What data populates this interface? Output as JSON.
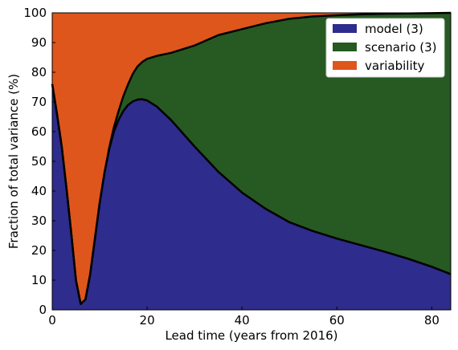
{
  "chart_data": {
    "type": "area",
    "stacked": true,
    "xlabel": "Lead time (years from 2016)",
    "ylabel": "Fraction of total variance (%)",
    "xlim": [
      0,
      84
    ],
    "ylim": [
      0,
      100
    ],
    "xticks": [
      0,
      20,
      40,
      60,
      80
    ],
    "yticks": [
      0,
      10,
      20,
      30,
      40,
      50,
      60,
      70,
      80,
      90,
      100
    ],
    "grid": false,
    "legend_position": "top-right",
    "x": [
      0,
      1,
      2,
      3,
      4,
      5,
      6,
      7,
      8,
      9,
      10,
      11,
      12,
      13,
      14,
      15,
      16,
      17,
      18,
      19,
      20,
      22,
      25,
      30,
      35,
      40,
      45,
      50,
      55,
      60,
      65,
      70,
      75,
      80,
      84
    ],
    "series": [
      {
        "name": "model (3)",
        "color": "#2e2c8c",
        "values": [
          76,
          66,
          55,
          41,
          26,
          10,
          2,
          3.5,
          12,
          24,
          36,
          46,
          54,
          60,
          64,
          67,
          69,
          70.2,
          70.8,
          70.9,
          70.5,
          68.5,
          64,
          55,
          46.5,
          39.5,
          34,
          29.5,
          26.5,
          24,
          21.8,
          19.6,
          17.2,
          14.5,
          12
        ]
      },
      {
        "name": "scenario (3)",
        "color": "#265a22",
        "values": [
          0,
          0,
          0,
          0,
          0,
          0,
          0,
          0,
          0,
          0,
          0,
          0,
          0.5,
          1.5,
          3,
          5,
          7,
          9.3,
          11.2,
          12.6,
          14,
          17,
          22.5,
          34,
          46,
          55,
          62.5,
          68.5,
          72.3,
          75.2,
          77.7,
          80.1,
          82.6,
          85.4,
          88
        ]
      },
      {
        "name": "variability",
        "color": "#de561c",
        "values": [
          24,
          34,
          45,
          59,
          74,
          90,
          98,
          96.5,
          88,
          76,
          64,
          54,
          45.5,
          38.5,
          33,
          28,
          24,
          20.5,
          18,
          16.5,
          15.5,
          14.5,
          13.5,
          11,
          7.5,
          5.5,
          3.5,
          2,
          1.2,
          0.8,
          0.5,
          0.3,
          0.2,
          0.1,
          0
        ]
      }
    ]
  }
}
